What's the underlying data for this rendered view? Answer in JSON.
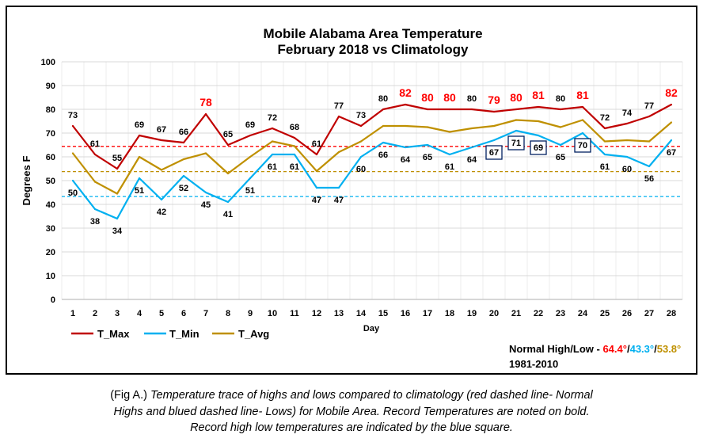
{
  "chart_data": {
    "type": "line",
    "title": "Mobile Alabama Area Temperature",
    "subtitle": "February 2018 vs Climatology",
    "xlabel": "Day",
    "ylabel": "Degrees F",
    "x": [
      1,
      2,
      3,
      4,
      5,
      6,
      7,
      8,
      9,
      10,
      11,
      12,
      13,
      14,
      15,
      16,
      17,
      18,
      19,
      20,
      21,
      22,
      23,
      24,
      25,
      26,
      27,
      28
    ],
    "ylim": [
      0,
      100
    ],
    "yticks": [
      0,
      10,
      20,
      30,
      40,
      50,
      60,
      70,
      80,
      90,
      100
    ],
    "grid": true,
    "legend": "bottom-left",
    "series": [
      {
        "name": "T_Max",
        "color": "#c00000",
        "show_labels": true,
        "values": [
          73,
          61,
          55,
          69,
          67,
          66,
          78,
          65,
          69,
          72,
          68,
          61,
          77,
          73,
          80,
          82,
          80,
          80,
          80,
          79,
          80,
          81,
          80,
          81,
          72,
          74,
          77,
          82
        ],
        "record_days": [
          7,
          16,
          17,
          18,
          20,
          21,
          22,
          24,
          28
        ]
      },
      {
        "name": "T_Min",
        "color": "#00b0f0",
        "show_labels": true,
        "values": [
          50,
          38,
          34,
          51,
          42,
          52,
          45,
          41,
          51,
          61,
          61,
          47,
          47,
          60,
          66,
          64,
          65,
          61,
          64,
          67,
          71,
          69,
          65,
          70,
          61,
          60,
          56,
          67
        ],
        "record_days": [
          20,
          21,
          22,
          24
        ]
      },
      {
        "name": "T_Avg",
        "color": "#bf9000",
        "show_labels": false,
        "values": [
          61.5,
          49.5,
          44.5,
          60,
          54.5,
          59,
          61.5,
          53,
          60,
          66.5,
          64.5,
          54,
          62,
          66.5,
          73,
          73,
          72.5,
          70.5,
          72,
          73,
          75.5,
          75,
          72.5,
          75.5,
          66.5,
          67,
          66.5,
          74.5
        ]
      }
    ],
    "reference_lines": [
      {
        "value": 64.4,
        "color": "#ff0000"
      },
      {
        "value": 43.3,
        "color": "#00b0f0"
      },
      {
        "value": 53.8,
        "color": "#bf9000"
      }
    ],
    "record_label_color": "#ff0000",
    "record_box_color": "#002060"
  },
  "note": {
    "label": "Normal High/Low - ",
    "high": "64.4°",
    "separator": "/",
    "low": "43.3°",
    "avg": "53.8°",
    "period": "1981-2010"
  },
  "caption": {
    "fig_label": "(Fig A.)",
    "lines": [
      "Temperature trace of highs and lows compared to climatology (red dashed line- Normal",
      "Highs and blued dashed line- Lows) for Mobile Area. Record Temperatures are noted on bold.",
      "Record high low temperatures are indicated by the blue square."
    ]
  }
}
